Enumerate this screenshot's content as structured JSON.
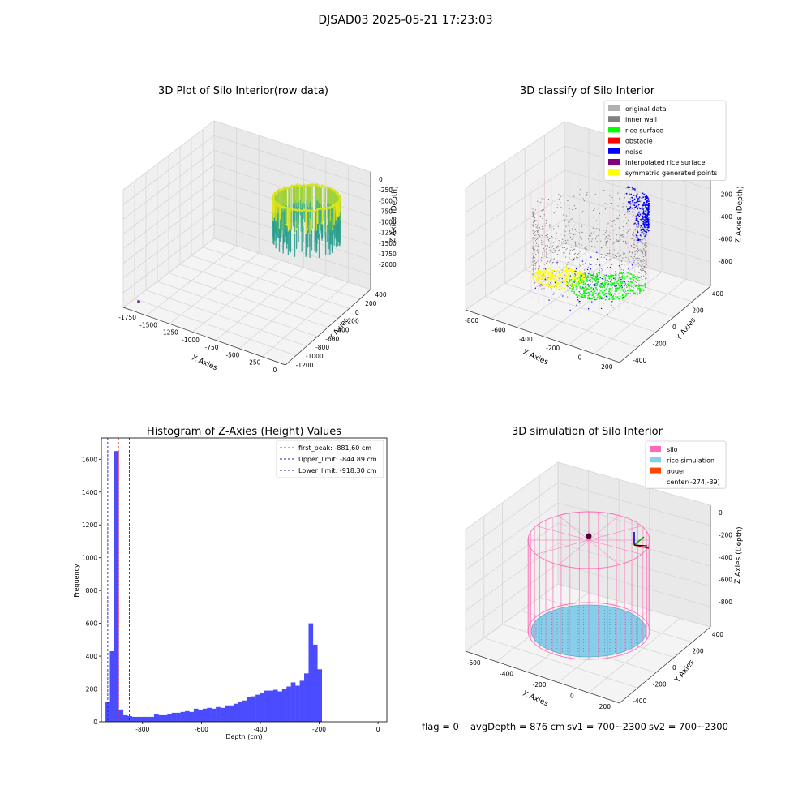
{
  "figure": {
    "title": "DJSAD03 2025-05-21 17:23:03",
    "footer": {
      "flag": "flag = 0",
      "avg_depth": "avgDepth = 876 cm",
      "sv1": "sv1 = 700~2300",
      "sv2": "sv2 = 700~2300"
    }
  },
  "colors": {
    "raw_low": "#2a9d8f",
    "raw_high": "#e6e619",
    "original": "#b0b0b0",
    "inner_wall": "#808080",
    "rice_surface": "#00ff00",
    "obstacle": "#ff0000",
    "noise": "#0000ff",
    "interpolated": "#800080",
    "symmetric": "#ffff00",
    "silo": "#ff69b4",
    "rice_sim": "#87ceeb",
    "auger": "#ff4500",
    "hist_bar": "#4b4bff",
    "first_peak_line": "#e03030",
    "limit_line": "#2020c0"
  },
  "chart_data": [
    {
      "type": "scatter3d",
      "title": "3D Plot of Silo Interior(row data)",
      "xlabel": "X Axies",
      "ylabel": "Y Axies",
      "zlabel": "Z Axies (Depth)",
      "x_ticks": [
        "-1750",
        "-1500",
        "-1250",
        "-1000",
        "-750",
        "-500",
        "-250",
        "0"
      ],
      "y_ticks": [
        "-1200",
        "-1000",
        "-800",
        "-600",
        "-400",
        "-200",
        "0",
        "200",
        "400"
      ],
      "z_ticks": [
        "0",
        "-250",
        "-500",
        "-750",
        "-1000",
        "-1250",
        "-1500",
        "-1750",
        "-2000"
      ],
      "xlim": [
        -1800,
        100
      ],
      "ylim": [
        -1250,
        450
      ],
      "zlim": [
        -2050,
        50
      ],
      "cylinder": {
        "cx": -274,
        "cy": -39,
        "r": 420,
        "z_top": -50,
        "z_bottom": -1000
      },
      "outlier": {
        "x": -1750,
        "y": 300,
        "z": -2000
      }
    },
    {
      "type": "scatter3d",
      "title": "3D classify of Silo Interior",
      "xlabel": "X Axies",
      "ylabel": "Y Axies",
      "zlabel": "Z Axies (Depth)",
      "x_ticks": [
        "-800",
        "-600",
        "-400",
        "-200",
        "0",
        "200"
      ],
      "y_ticks": [
        "-400",
        "-200",
        "0",
        "200",
        "400"
      ],
      "z_ticks": [
        "0",
        "-200",
        "-400",
        "-600",
        "-800"
      ],
      "xlim": [
        -850,
        250
      ],
      "ylim": [
        -500,
        450
      ],
      "zlim": [
        -950,
        50
      ],
      "legend": [
        {
          "label": "original data",
          "color": "#b0b0b0"
        },
        {
          "label": "inner wall",
          "color": "#808080"
        },
        {
          "label": "rice surface",
          "color": "#00ff00"
        },
        {
          "label": "obstacle",
          "color": "#ff0000"
        },
        {
          "label": "noise",
          "color": "#0000ff"
        },
        {
          "label": "interpolated rice surface",
          "color": "#800080"
        },
        {
          "label": "symmetric generated points",
          "color": "#ffff00"
        }
      ],
      "cylinder": {
        "cx": -274,
        "cy": -39,
        "r": 420,
        "z_top": -20,
        "z_bottom": -880
      }
    },
    {
      "type": "bar",
      "title": "Histogram of Z-Axies (Height) Values",
      "xlabel": "Depth (cm)",
      "ylabel": "Frequency",
      "xlim": [
        -940,
        30
      ],
      "ylim": [
        0,
        1730
      ],
      "x_ticks": [
        -800,
        -600,
        -400,
        -200,
        0
      ],
      "y_ticks": [
        0,
        200,
        400,
        600,
        800,
        1000,
        1200,
        1400,
        1600
      ],
      "bin_start": -926,
      "bin_width": 15,
      "values": [
        120,
        430,
        1650,
        75,
        40,
        35,
        30,
        30,
        30,
        30,
        30,
        45,
        40,
        40,
        45,
        55,
        55,
        60,
        65,
        60,
        80,
        70,
        80,
        85,
        80,
        90,
        85,
        100,
        100,
        110,
        120,
        130,
        150,
        155,
        165,
        175,
        190,
        190,
        195,
        185,
        200,
        215,
        240,
        220,
        250,
        295,
        600,
        470,
        320
      ],
      "lines": [
        {
          "label": "first_peak: -881.60 cm",
          "x": -881.6,
          "color": "#e03030"
        },
        {
          "label": "Upper_limit: -844.89 cm",
          "x": -844.89,
          "color": "#2020c0"
        },
        {
          "label": "Lower_limit: -918.30 cm",
          "x": -918.3,
          "color": "#2020c0"
        }
      ]
    },
    {
      "type": "surface3d",
      "title": "3D simulation of Silo Interior",
      "xlabel": "X Axies",
      "ylabel": "Y Axies",
      "zlabel": "Z Axies (Depth)",
      "x_ticks": [
        "-600",
        "-400",
        "-200",
        "0",
        "200"
      ],
      "y_ticks": [
        "-400",
        "-200",
        "0",
        "200",
        "400"
      ],
      "z_ticks": [
        "0",
        "-200",
        "-400",
        "-600",
        "-800"
      ],
      "xlim": [
        -750,
        250
      ],
      "ylim": [
        -500,
        450
      ],
      "zlim": [
        -950,
        100
      ],
      "legend": [
        {
          "label": "silo",
          "color": "#ff69b4"
        },
        {
          "label": "rice simulation",
          "color": "#87ceeb"
        },
        {
          "label": "auger",
          "color": "#ff4500"
        },
        {
          "label": "center(-274,-39)",
          "color": ""
        }
      ],
      "silo": {
        "cx": -274,
        "cy": -39,
        "r": 420,
        "z_top": 0,
        "z_bottom": -876
      },
      "rice_level": -876
    }
  ]
}
